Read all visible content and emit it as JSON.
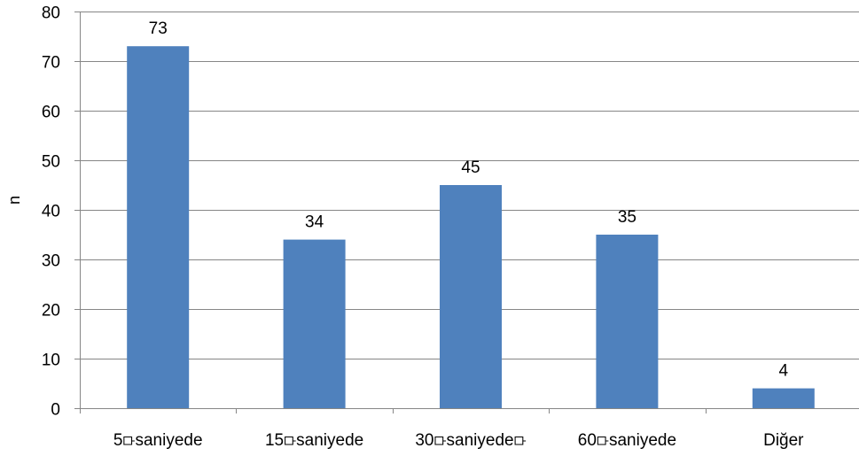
{
  "chart_data": {
    "type": "bar",
    "title": "",
    "xlabel": "",
    "ylabel": "n",
    "ylim": [
      0,
      80
    ],
    "yticks": [
      "0",
      "10",
      "20",
      "30",
      "40",
      "50",
      "60",
      "70",
      "80"
    ],
    "grid": true,
    "categories": [
      "5\u0000saniyede",
      "15\u0000saniyede",
      "30\u0000saniyede\u0000",
      "60\u0000saniyede",
      "Diğer"
    ],
    "display_categories": [
      "5⟥saniyede",
      "15⟥saniyede",
      "30⟥saniyede⟥",
      "60⟥saniyede",
      "Diğer"
    ],
    "values": [
      73,
      34,
      45,
      35,
      4
    ],
    "data_labels": [
      "73",
      "34",
      "45",
      "35",
      "4"
    ],
    "bar_color": "#4f81bd",
    "gridline_color": "#868686",
    "axis_color": "#868686"
  }
}
